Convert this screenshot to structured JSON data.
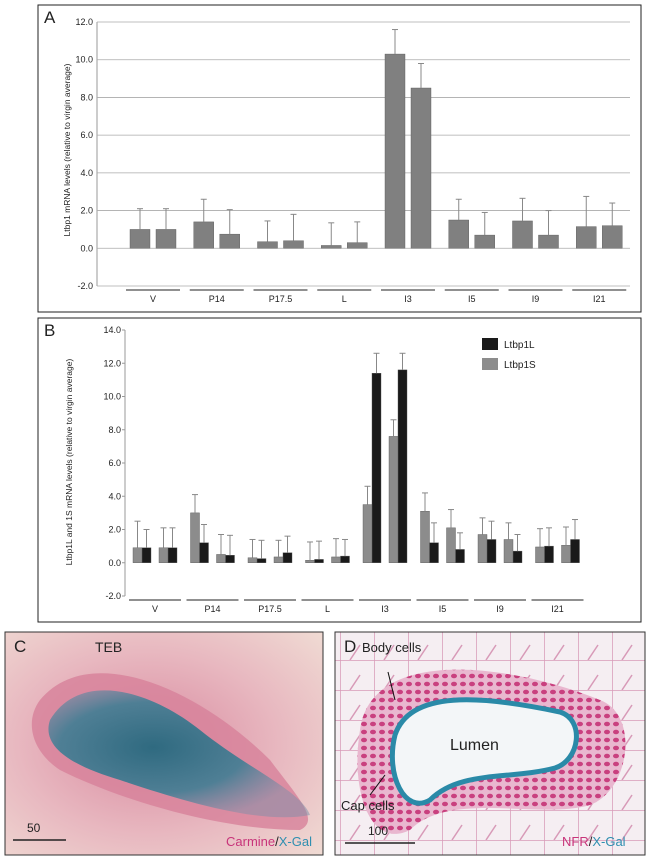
{
  "chart_data": [
    {
      "type": "bar",
      "label": "A",
      "ylabel": "Ltbp1 mRNA levels (relative to virgin average)",
      "categories": [
        "V",
        null,
        "P14",
        null,
        "P17.5",
        null,
        "L",
        null,
        "I3",
        null,
        "I5",
        null,
        "I9",
        null,
        "I21",
        null
      ],
      "values": [
        1.0,
        1.0,
        1.4,
        0.75,
        0.35,
        0.4,
        0.15,
        0.3,
        10.3,
        8.5,
        1.5,
        0.7,
        1.45,
        0.7,
        1.15,
        1.2
      ],
      "errors": [
        1.1,
        1.1,
        1.2,
        1.3,
        1.1,
        1.4,
        1.2,
        1.1,
        1.3,
        1.3,
        1.1,
        1.2,
        1.2,
        1.3,
        1.6,
        1.2
      ],
      "color": "#808080",
      "grid": true,
      "ylim": [
        -2,
        12
      ],
      "yticks": [
        {
          "value": -2,
          "label": "-2.0"
        },
        {
          "value": 0,
          "label": "0.0"
        },
        {
          "value": 2,
          "label": "2.0"
        },
        {
          "value": 4,
          "label": "4.0"
        },
        {
          "value": 6,
          "label": "6.0"
        },
        {
          "value": 8,
          "label": "8.0"
        },
        {
          "value": 10,
          "label": "10.0"
        },
        {
          "value": 12,
          "label": "12.0"
        }
      ]
    },
    {
      "type": "bar",
      "label": "B",
      "ylabel": "Ltbp1L and 1S mRNA levels (relative to virgin average)",
      "categories": [
        "V",
        null,
        "P14",
        null,
        "P17.5",
        null,
        "L",
        null,
        "I3",
        null,
        "I5",
        null,
        "I9",
        null,
        "I21",
        null
      ],
      "series": [
        {
          "name": "Ltbp1L",
          "color": "#1a1a1a",
          "values": [
            0.9,
            0.9,
            1.2,
            0.45,
            0.25,
            0.6,
            0.2,
            0.4,
            11.4,
            11.6,
            1.2,
            0.8,
            1.4,
            0.7,
            1.0,
            1.4
          ],
          "errors": [
            1.1,
            1.2,
            1.1,
            1.2,
            1.1,
            1.0,
            1.1,
            1.0,
            1.2,
            1.0,
            1.2,
            1.0,
            1.1,
            1.0,
            1.1,
            1.2
          ]
        },
        {
          "name": "Ltbp1S",
          "color": "#8c8c8c",
          "values": [
            0.9,
            0.9,
            3.0,
            0.5,
            0.3,
            0.35,
            0.15,
            0.35,
            3.5,
            7.6,
            3.1,
            2.1,
            1.7,
            1.4,
            0.95,
            1.05
          ],
          "errors": [
            1.6,
            1.2,
            1.1,
            1.2,
            1.1,
            1.0,
            1.1,
            1.1,
            1.1,
            1.0,
            1.1,
            1.1,
            1.0,
            1.0,
            1.1,
            1.1
          ]
        }
      ],
      "grid": false,
      "legend": "upper right",
      "ylim": [
        -2,
        14
      ],
      "yticks": [
        {
          "value": -2,
          "label": "-2.0"
        },
        {
          "value": 0,
          "label": "0.0"
        },
        {
          "value": 2,
          "label": "2.0"
        },
        {
          "value": 4,
          "label": "4.0"
        },
        {
          "value": 6,
          "label": "6.0"
        },
        {
          "value": 8,
          "label": "8.0"
        },
        {
          "value": 10,
          "label": "10.0"
        },
        {
          "value": 12,
          "label": "12.0"
        },
        {
          "value": 14,
          "label": "14.0"
        }
      ]
    }
  ],
  "panel_c": {
    "label": "C",
    "title": "TEB",
    "stain_1": "Carmine",
    "separator": "/",
    "stain_2": "X-Gal",
    "scale": "50"
  },
  "panel_d": {
    "label": "D",
    "body": "Body cells",
    "lumen": "Lumen",
    "cap": "Cap cells",
    "stain_1": "NFR",
    "separator": "/",
    "stain_2": "X-Gal",
    "scale": "100"
  }
}
